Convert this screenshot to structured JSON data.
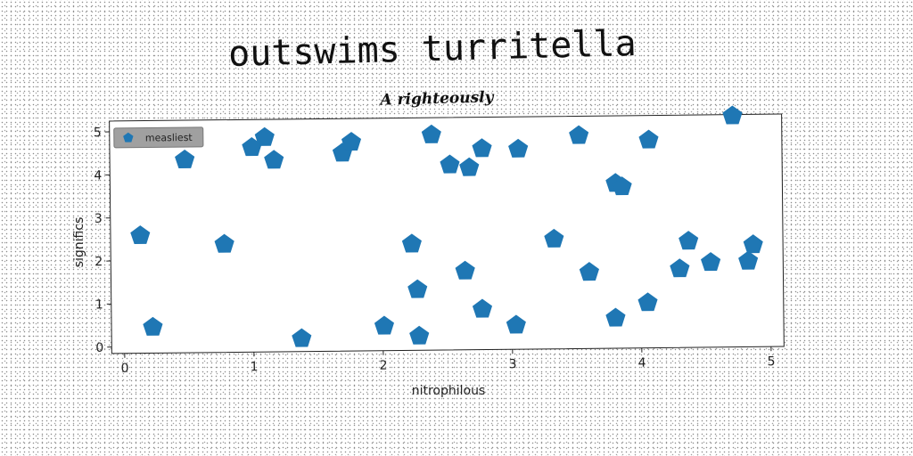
{
  "title": "outswims turritella",
  "chart_data": {
    "type": "scatter",
    "title": "outswims turritella",
    "subtitle": "A righteously",
    "xlabel": "nitrophilous",
    "ylabel": "significs",
    "xlim": [
      -0.1,
      5.1
    ],
    "ylim": [
      -0.15,
      5.25
    ],
    "xticks": [
      "0",
      "1",
      "2",
      "3",
      "4",
      "5"
    ],
    "yticks": [
      "0",
      "1",
      "2",
      "3",
      "4",
      "5"
    ],
    "grid": false,
    "legend_position": "top-left",
    "series": [
      {
        "name": "measliest",
        "color": "#1f77b4",
        "marker": "pentagon",
        "x": [
          0.13,
          0.22,
          0.48,
          0.78,
          1.0,
          1.1,
          1.17,
          1.37,
          1.7,
          1.77,
          2.01,
          2.23,
          2.27,
          2.28,
          2.39,
          2.53,
          2.64,
          2.68,
          2.77,
          2.78,
          3.03,
          3.06,
          3.33,
          3.53,
          3.6,
          3.8,
          3.81,
          3.86,
          4.05,
          4.07,
          4.3,
          4.37,
          4.54,
          4.72,
          4.83,
          4.87
        ],
        "y": [
          2.58,
          0.45,
          4.33,
          2.36,
          4.6,
          4.83,
          4.3,
          0.15,
          4.45,
          4.7,
          0.42,
          2.32,
          1.26,
          0.18,
          4.85,
          4.15,
          1.68,
          4.08,
          0.79,
          4.52,
          0.41,
          4.5,
          2.4,
          4.8,
          1.62,
          0.55,
          3.68,
          3.6,
          0.9,
          4.68,
          1.68,
          2.32,
          1.82,
          5.22,
          1.84,
          2.22
        ]
      }
    ]
  }
}
